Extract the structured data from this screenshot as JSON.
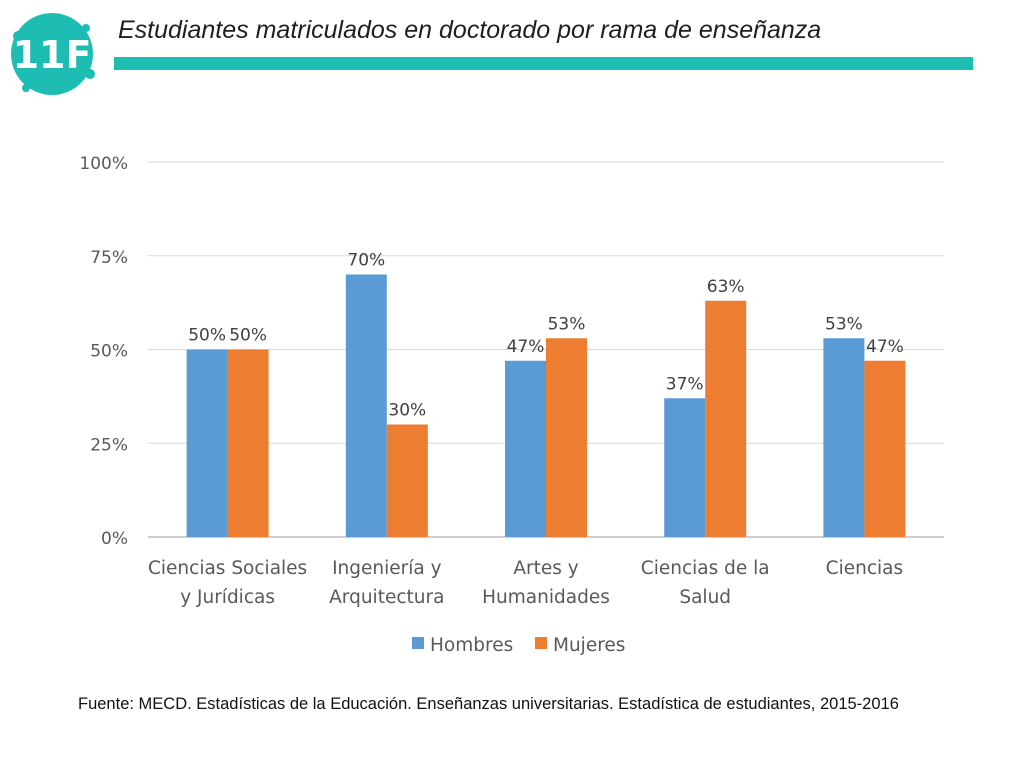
{
  "header": {
    "logo_text": "11F",
    "title": "Estudiantes matriculados en doctorado por rama de enseñanza",
    "accent_color": "#1dbdb4"
  },
  "chart_data": {
    "type": "bar",
    "categories": [
      [
        "Ciencias Sociales",
        "y Jurídicas"
      ],
      [
        "Ingeniería y",
        "Arquitectura"
      ],
      [
        "Artes y",
        "Humanidades"
      ],
      [
        "Ciencias de la",
        "Salud"
      ],
      [
        "Ciencias"
      ]
    ],
    "series": [
      {
        "name": "Hombres",
        "values": [
          50,
          70,
          47,
          37,
          53
        ],
        "labels": [
          "50%",
          "70%",
          "47%",
          "37%",
          "53%"
        ],
        "color": "#5b9bd5"
      },
      {
        "name": "Mujeres",
        "values": [
          50,
          30,
          53,
          63,
          47
        ],
        "labels": [
          "50%",
          "30%",
          "53%",
          "63%",
          "47%"
        ],
        "color": "#ed7d31"
      }
    ],
    "ylim": [
      0,
      100
    ],
    "yticks": [
      0,
      25,
      50,
      75,
      100
    ],
    "ytick_labels": [
      "0%",
      "25%",
      "50%",
      "75%",
      "100%"
    ],
    "grid": true,
    "legend_position": "bottom"
  },
  "footer": {
    "source": "Fuente: MECD. Estadísticas de la Educación. Enseñanzas universitarias. Estadística de estudiantes, 2015-2016"
  }
}
